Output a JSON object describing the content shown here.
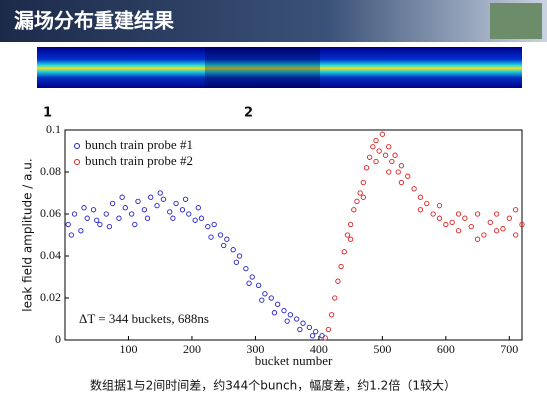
{
  "header": {
    "title": "漏场分布重建结果"
  },
  "heatmap_labels": [
    "1",
    "2"
  ],
  "caption": "数组据1与2间时间差，约344个bunch，幅度差，约1.2倍（1较大）",
  "chart_data": {
    "type": "scatter",
    "xlabel": "bucket number",
    "ylabel": "leak field amplitude / a.u.",
    "annotation": "ΔT = 344 buckets, 688ns",
    "xlim": [
      0,
      720
    ],
    "ylim": [
      0,
      0.1
    ],
    "xticks": [
      100,
      200,
      300,
      400,
      500,
      600,
      700
    ],
    "yticks": [
      0,
      0.02,
      0.04,
      0.06,
      0.08,
      0.1
    ],
    "legend": "upper left",
    "series": [
      {
        "name": "bunch train probe #1",
        "color": "#2222cc",
        "x": [
          5,
          15,
          25,
          35,
          45,
          55,
          65,
          75,
          85,
          95,
          105,
          115,
          125,
          135,
          145,
          155,
          165,
          175,
          185,
          195,
          205,
          215,
          225,
          235,
          245,
          255,
          265,
          275,
          285,
          295,
          305,
          315,
          325,
          335,
          345,
          355,
          365,
          375,
          385,
          395,
          405,
          10,
          30,
          50,
          70,
          90,
          110,
          130,
          150,
          170,
          190,
          210,
          230,
          250,
          270,
          290,
          310,
          330,
          350,
          370,
          390
        ],
        "values": [
          0.055,
          0.06,
          0.052,
          0.058,
          0.062,
          0.055,
          0.06,
          0.065,
          0.058,
          0.063,
          0.06,
          0.066,
          0.062,
          0.068,
          0.064,
          0.067,
          0.061,
          0.065,
          0.062,
          0.06,
          0.057,
          0.058,
          0.054,
          0.055,
          0.05,
          0.048,
          0.043,
          0.04,
          0.034,
          0.03,
          0.026,
          0.022,
          0.02,
          0.017,
          0.014,
          0.012,
          0.01,
          0.008,
          0.006,
          0.004,
          0.002,
          0.05,
          0.063,
          0.057,
          0.054,
          0.068,
          0.055,
          0.058,
          0.07,
          0.058,
          0.067,
          0.063,
          0.049,
          0.045,
          0.037,
          0.027,
          0.019,
          0.013,
          0.009,
          0.005,
          0.002
        ]
      },
      {
        "name": "bunch train probe #2",
        "color": "#dd2222",
        "x": [
          410,
          415,
          420,
          425,
          430,
          435,
          440,
          445,
          450,
          455,
          460,
          465,
          470,
          475,
          480,
          485,
          490,
          495,
          500,
          505,
          510,
          515,
          520,
          525,
          530,
          540,
          550,
          560,
          570,
          580,
          590,
          600,
          610,
          620,
          630,
          640,
          650,
          660,
          670,
          680,
          690,
          700,
          710,
          720,
          450,
          470,
          490,
          510,
          530,
          560,
          590,
          620,
          650,
          680,
          710
        ],
        "values": [
          0.001,
          0.005,
          0.012,
          0.02,
          0.028,
          0.035,
          0.042,
          0.05,
          0.055,
          0.062,
          0.066,
          0.07,
          0.075,
          0.082,
          0.087,
          0.092,
          0.095,
          0.09,
          0.098,
          0.088,
          0.092,
          0.085,
          0.088,
          0.08,
          0.083,
          0.078,
          0.072,
          0.068,
          0.065,
          0.06,
          0.058,
          0.055,
          0.056,
          0.052,
          0.058,
          0.054,
          0.06,
          0.05,
          0.056,
          0.06,
          0.053,
          0.058,
          0.062,
          0.055,
          0.048,
          0.068,
          0.085,
          0.08,
          0.075,
          0.062,
          0.064,
          0.06,
          0.048,
          0.052,
          0.05
        ]
      }
    ]
  }
}
